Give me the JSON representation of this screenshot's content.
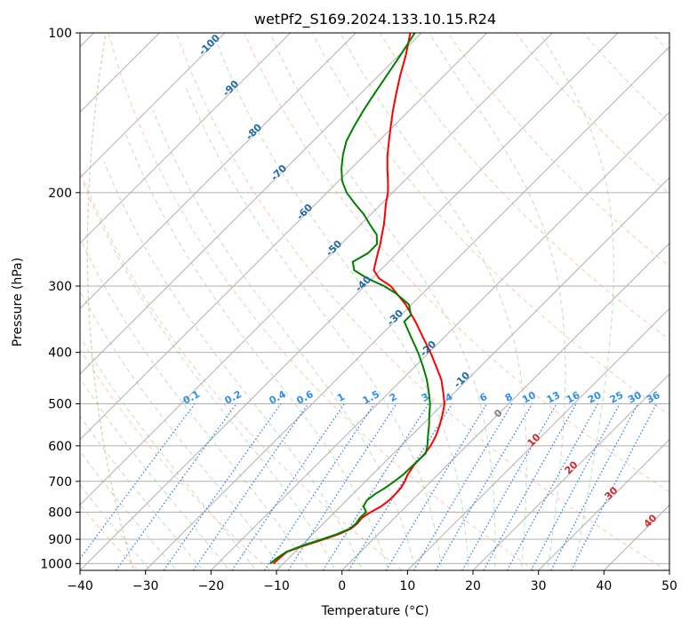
{
  "chart_data": {
    "type": "line",
    "subtype": "skew-t log-p",
    "title": "wetPf2_S169.2024.133.10.15.R24",
    "xlabel": "Temperature (°C)",
    "ylabel": "Pressure (hPa)",
    "xlim": [
      -40,
      50
    ],
    "ylim": [
      1030,
      100
    ],
    "y_scale": "log",
    "grid": true,
    "x_ticks": [
      "−40",
      "−30",
      "−20",
      "−10",
      "0",
      "10",
      "20",
      "30",
      "40",
      "50"
    ],
    "y_ticks": [
      "100",
      "200",
      "300",
      "400",
      "500",
      "600",
      "700",
      "800",
      "900",
      "1000"
    ],
    "series": [
      {
        "color": "#ff0000",
        "p": [
          1000,
          975,
          950,
          925,
          900,
          880,
          860,
          840,
          820,
          800,
          780,
          760,
          740,
          720,
          700,
          680,
          650,
          620,
          600,
          575,
          550,
          525,
          500,
          475,
          450,
          425,
          400,
          375,
          350,
          325,
          300,
          290,
          280,
          270,
          260,
          250,
          240,
          230,
          220,
          210,
          200,
          190,
          180,
          170,
          160,
          150,
          140,
          130,
          120,
          110,
          100
        ],
        "t": [
          -11.5,
          -11.4,
          -11.2,
          -9.5,
          -7.5,
          -6.0,
          -5.0,
          -4.8,
          -5.0,
          -4.5,
          -3.8,
          -3.5,
          -3.5,
          -3.6,
          -4.0,
          -4.6,
          -5.1,
          -5.2,
          -5.5,
          -6.2,
          -7.2,
          -8.4,
          -9.8,
          -11.8,
          -14.0,
          -16.8,
          -19.8,
          -23.2,
          -26.8,
          -30.9,
          -36.0,
          -39.0,
          -41.0,
          -42.0,
          -43.0,
          -44.0,
          -45.2,
          -46.4,
          -47.8,
          -49.3,
          -50.7,
          -52.5,
          -54.5,
          -56.5,
          -58.4,
          -60.4,
          -62.5,
          -64.6,
          -66.8,
          -69.0,
          -71.7
        ]
      },
      {
        "color": "#008000",
        "p": [
          1000,
          975,
          950,
          925,
          900,
          880,
          860,
          840,
          820,
          800,
          780,
          760,
          740,
          720,
          700,
          680,
          650,
          620,
          600,
          575,
          550,
          525,
          500,
          475,
          450,
          425,
          400,
          375,
          350,
          340,
          325,
          310,
          300,
          290,
          280,
          270,
          260,
          250,
          240,
          230,
          220,
          210,
          200,
          190,
          180,
          170,
          160,
          150,
          140,
          130,
          120,
          110,
          100
        ],
        "t": [
          -12.0,
          -11.8,
          -11.3,
          -9.8,
          -7.8,
          -6.3,
          -5.2,
          -5.0,
          -5.3,
          -5.2,
          -6.5,
          -6.9,
          -6.6,
          -6.0,
          -5.6,
          -5.3,
          -5.2,
          -5.1,
          -6.0,
          -7.4,
          -8.8,
          -10.4,
          -12.0,
          -14.0,
          -16.2,
          -18.8,
          -21.7,
          -25.0,
          -28.5,
          -28.5,
          -30.4,
          -34.0,
          -37.0,
          -40.8,
          -44.0,
          -45.5,
          -44.5,
          -44.5,
          -46.0,
          -48.5,
          -51.0,
          -54.0,
          -57.0,
          -59.5,
          -61.5,
          -63.3,
          -64.9,
          -66.0,
          -67.0,
          -67.9,
          -68.8,
          -69.8,
          -71.0
        ]
      }
    ],
    "isotherm_step": 10,
    "dry_adiabats_theta": [
      240,
      260,
      280,
      300,
      320,
      340,
      360,
      380,
      400,
      420,
      440,
      460,
      480,
      500,
      520,
      540,
      560,
      580,
      600
    ],
    "mixing_ratio_lines": [
      "0.1",
      "0.2",
      "0.4",
      "0.6",
      "1",
      "1.5",
      "2",
      "3",
      "4",
      "6",
      "8",
      "10",
      "13",
      "16",
      "20",
      "25",
      "30",
      "36"
    ],
    "blue_labels": [
      "-100",
      "-90",
      "-80",
      "-70",
      "-60",
      "-50",
      "-40",
      "-30",
      "-20",
      "-10"
    ],
    "red_labels": [
      "10",
      "20",
      "30",
      "40"
    ],
    "gray_label": "0"
  }
}
